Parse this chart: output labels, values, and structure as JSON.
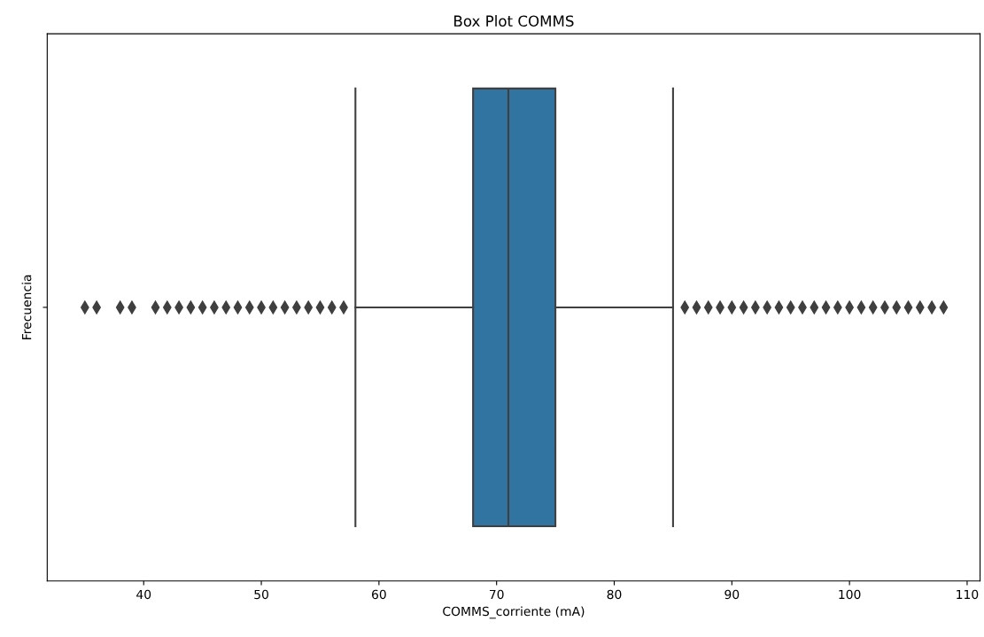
{
  "chart_data": {
    "type": "box",
    "title": "Box Plot COMMS",
    "xlabel": "COMMS_corriente (mA)",
    "ylabel": "Frecuencia",
    "orientation": "horizontal",
    "categories": [
      null
    ],
    "series": [
      {
        "color": "#3274a1",
        "boxes": [
          {
            "low": 58,
            "q1": 68,
            "median": 71,
            "q3": 75,
            "high": 85,
            "outliers": [
              35,
              36,
              38,
              39,
              41,
              42,
              43,
              44,
              45,
              46,
              47,
              48,
              49,
              50,
              51,
              52,
              53,
              54,
              55,
              56,
              57,
              86,
              87,
              88,
              89,
              90,
              91,
              92,
              93,
              94,
              95,
              96,
              97,
              98,
              99,
              100,
              101,
              102,
              103,
              104,
              105,
              106,
              107,
              108
            ]
          }
        ]
      }
    ],
    "xlim": [
      31.8,
      111.1
    ],
    "xticks": [
      40,
      50,
      60,
      70,
      80,
      90,
      100,
      110
    ],
    "marker": "diamond",
    "grid": false
  }
}
